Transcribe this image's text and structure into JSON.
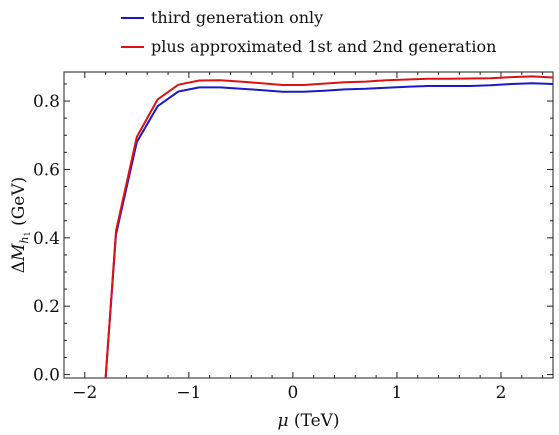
{
  "chart_data": {
    "type": "line",
    "xlabel": "μ (TeV)",
    "ylabel": "ΔM_h1 (GeV)",
    "xlim": [
      -2.2,
      2.5
    ],
    "ylim": [
      -0.01,
      0.885
    ],
    "x_ticks": [
      -2,
      -1,
      0,
      1,
      2
    ],
    "x_tick_labels": [
      "−2",
      "−1",
      "0",
      "1",
      "2"
    ],
    "y_ticks": [
      0.0,
      0.2,
      0.4,
      0.6,
      0.8
    ],
    "y_tick_labels": [
      "0.0",
      "0.2",
      "0.4",
      "0.6",
      "0.8"
    ],
    "legend_position": "top",
    "series": [
      {
        "name": "third generation only",
        "color": "#1a1acc",
        "x": [
          -1.8,
          -1.7,
          -1.5,
          -1.3,
          -1.1,
          -0.9,
          -0.7,
          -0.5,
          -0.3,
          -0.1,
          0.1,
          0.3,
          0.5,
          0.7,
          0.9,
          1.1,
          1.3,
          1.5,
          1.7,
          1.9,
          2.1,
          2.3,
          2.5
        ],
        "values": [
          -0.01,
          0.41,
          0.68,
          0.785,
          0.828,
          0.84,
          0.84,
          0.836,
          0.832,
          0.827,
          0.827,
          0.83,
          0.834,
          0.836,
          0.839,
          0.842,
          0.844,
          0.844,
          0.844,
          0.846,
          0.85,
          0.852,
          0.85
        ]
      },
      {
        "name": "plus approximated 1st and 2nd generation",
        "color": "#dd1111",
        "x": [
          -1.8,
          -1.7,
          -1.5,
          -1.3,
          -1.1,
          -0.9,
          -0.7,
          -0.5,
          -0.3,
          -0.1,
          0.1,
          0.3,
          0.5,
          0.7,
          0.9,
          1.1,
          1.3,
          1.5,
          1.7,
          1.9,
          2.1,
          2.3,
          2.5
        ],
        "values": [
          -0.01,
          0.42,
          0.695,
          0.805,
          0.848,
          0.86,
          0.861,
          0.857,
          0.852,
          0.847,
          0.847,
          0.851,
          0.855,
          0.857,
          0.861,
          0.863,
          0.865,
          0.865,
          0.866,
          0.867,
          0.87,
          0.872,
          0.869
        ]
      }
    ]
  }
}
